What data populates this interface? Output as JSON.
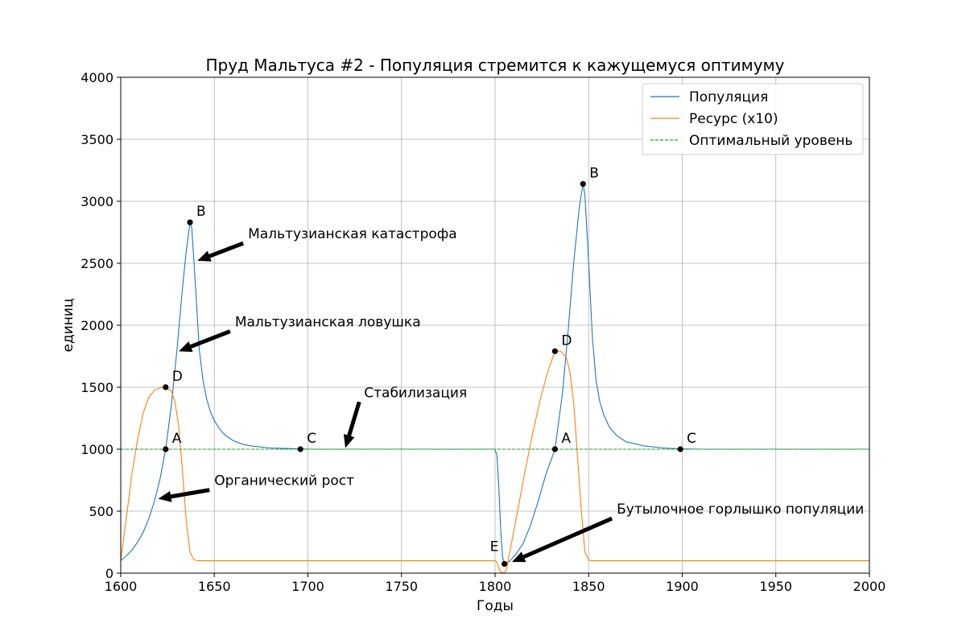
{
  "chart_data": {
    "type": "line",
    "title": "Пруд Мальтуса #2 - Популяция стремится к кажущемуся оптимуму",
    "xlabel": "Годы",
    "ylabel": "единиц",
    "xlim": [
      1600,
      2000
    ],
    "ylim": [
      0,
      4000
    ],
    "xticks": [
      1600,
      1650,
      1700,
      1750,
      1800,
      1850,
      1900,
      1950,
      2000
    ],
    "yticks": [
      0,
      500,
      1000,
      1500,
      2000,
      2500,
      3000,
      3500,
      4000
    ],
    "grid": true,
    "legend_position": "top-right",
    "series": [
      {
        "name": "Популяция",
        "color": "#1f77b4",
        "style": "solid",
        "points": [
          [
            1600,
            100
          ],
          [
            1603,
            140
          ],
          [
            1606,
            185
          ],
          [
            1609,
            250
          ],
          [
            1612,
            330
          ],
          [
            1615,
            440
          ],
          [
            1618,
            580
          ],
          [
            1621,
            760
          ],
          [
            1624,
            1000
          ],
          [
            1627,
            1350
          ],
          [
            1630,
            1800
          ],
          [
            1633,
            2300
          ],
          [
            1635,
            2600
          ],
          [
            1637,
            2830
          ],
          [
            1638,
            2780
          ],
          [
            1640,
            2300
          ],
          [
            1642,
            1800
          ],
          [
            1644,
            1550
          ],
          [
            1646,
            1400
          ],
          [
            1648,
            1300
          ],
          [
            1650,
            1230
          ],
          [
            1653,
            1160
          ],
          [
            1656,
            1110
          ],
          [
            1660,
            1070
          ],
          [
            1665,
            1040
          ],
          [
            1670,
            1025
          ],
          [
            1680,
            1010
          ],
          [
            1690,
            1005
          ],
          [
            1696,
            1002
          ],
          [
            1700,
            1000
          ],
          [
            1750,
            1000
          ],
          [
            1798,
            1000
          ],
          [
            1800,
            1000
          ],
          [
            1801,
            950
          ],
          [
            1802,
            700
          ],
          [
            1803,
            350
          ],
          [
            1804,
            130
          ],
          [
            1805,
            80
          ],
          [
            1806,
            75
          ],
          [
            1808,
            100
          ],
          [
            1811,
            150
          ],
          [
            1815,
            240
          ],
          [
            1819,
            390
          ],
          [
            1823,
            580
          ],
          [
            1827,
            790
          ],
          [
            1832,
            1000
          ],
          [
            1836,
            1450
          ],
          [
            1839,
            1950
          ],
          [
            1842,
            2500
          ],
          [
            1845,
            2950
          ],
          [
            1847,
            3140
          ],
          [
            1848,
            3050
          ],
          [
            1850,
            2500
          ],
          [
            1852,
            1900
          ],
          [
            1854,
            1550
          ],
          [
            1856,
            1380
          ],
          [
            1858,
            1280
          ],
          [
            1861,
            1180
          ],
          [
            1865,
            1110
          ],
          [
            1870,
            1060
          ],
          [
            1880,
            1025
          ],
          [
            1890,
            1010
          ],
          [
            1899,
            1003
          ],
          [
            1910,
            1000
          ],
          [
            2000,
            1000
          ]
        ]
      },
      {
        "name": "Ресурс (х10)",
        "color": "#ff7f0e",
        "style": "solid",
        "points": [
          [
            1600,
            100
          ],
          [
            1603,
            450
          ],
          [
            1606,
            800
          ],
          [
            1609,
            1080
          ],
          [
            1612,
            1290
          ],
          [
            1615,
            1420
          ],
          [
            1618,
            1475
          ],
          [
            1621,
            1495
          ],
          [
            1624,
            1500
          ],
          [
            1627,
            1470
          ],
          [
            1629,
            1380
          ],
          [
            1631,
            1180
          ],
          [
            1633,
            820
          ],
          [
            1635,
            420
          ],
          [
            1637,
            170
          ],
          [
            1639,
            110
          ],
          [
            1641,
            100
          ],
          [
            1700,
            100
          ],
          [
            1800,
            100
          ],
          [
            1801,
            90
          ],
          [
            1802,
            40
          ],
          [
            1803,
            10
          ],
          [
            1805,
            0
          ],
          [
            1806,
            30
          ],
          [
            1808,
            180
          ],
          [
            1812,
            500
          ],
          [
            1816,
            820
          ],
          [
            1820,
            1120
          ],
          [
            1824,
            1390
          ],
          [
            1828,
            1620
          ],
          [
            1832,
            1790
          ],
          [
            1835,
            1790
          ],
          [
            1838,
            1740
          ],
          [
            1840,
            1620
          ],
          [
            1842,
            1380
          ],
          [
            1844,
            950
          ],
          [
            1846,
            520
          ],
          [
            1848,
            170
          ],
          [
            1850,
            105
          ],
          [
            1852,
            100
          ],
          [
            2000,
            100
          ]
        ]
      },
      {
        "name": "Оптимальный уровень",
        "color": "#2ca02c",
        "style": "dashed",
        "points": [
          [
            1600,
            1000
          ],
          [
            2000,
            1000
          ]
        ]
      }
    ],
    "markers": [
      {
        "label": "A",
        "x": 1624,
        "y": 1000
      },
      {
        "label": "B",
        "x": 1637,
        "y": 2830
      },
      {
        "label": "C",
        "x": 1696,
        "y": 1000
      },
      {
        "label": "D",
        "x": 1624,
        "y": 1500
      },
      {
        "label": "E",
        "x": 1805,
        "y": 75
      },
      {
        "label": "A",
        "x": 1832,
        "y": 1000
      },
      {
        "label": "B",
        "x": 1847,
        "y": 3140
      },
      {
        "label": "C",
        "x": 1899,
        "y": 1000
      },
      {
        "label": "D",
        "x": 1832,
        "y": 1790
      }
    ],
    "annotations": [
      {
        "text": "Мальтузианская катастрофа",
        "text_x": 1668,
        "text_y": 2700,
        "arrow_to_x": 1641,
        "arrow_to_y": 2520
      },
      {
        "text": "Мальтузианская ловушка",
        "text_x": 1661,
        "text_y": 1990,
        "arrow_to_x": 1631,
        "arrow_to_y": 1790
      },
      {
        "text": "Стабилизация",
        "text_x": 1730,
        "text_y": 1420,
        "arrow_to_x": 1720,
        "arrow_to_y": 1010
      },
      {
        "text": "Органический рост",
        "text_x": 1650,
        "text_y": 710,
        "arrow_to_x": 1620,
        "arrow_to_y": 600
      },
      {
        "text": "Бутылочное горлышко популяции",
        "text_x": 1865,
        "text_y": 480,
        "arrow_to_x": 1809,
        "arrow_to_y": 90
      }
    ]
  }
}
